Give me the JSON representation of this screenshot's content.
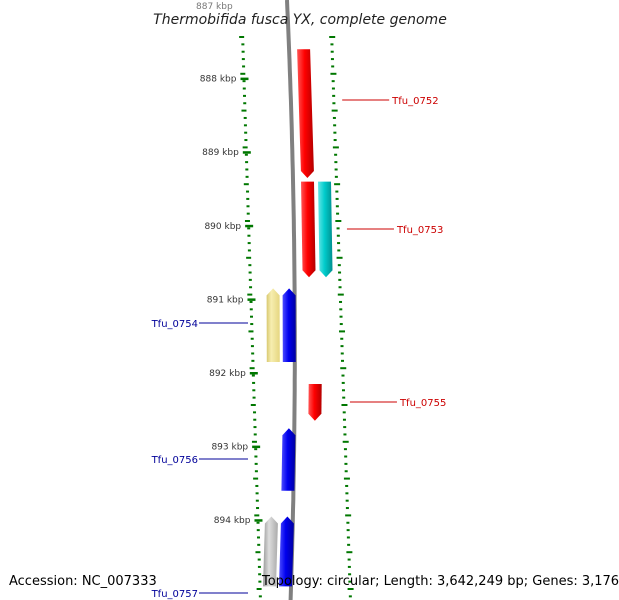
{
  "title": "Thermobifida fusca YX, complete genome",
  "top_tick_label": "887 kbp",
  "ticks": [
    "888 kbp",
    "889 kbp",
    "890 kbp",
    "891 kbp",
    "892 kbp",
    "893 kbp",
    "894 kbp"
  ],
  "genes": [
    {
      "label": "Tfu_0752",
      "strand": "plus",
      "start_kbp": 887.6,
      "end_kbp": 889.35,
      "color": "#ff0000"
    },
    {
      "label": "Tfu_0753",
      "strand": "plus",
      "start_kbp": 889.4,
      "end_kbp": 890.7,
      "color": "#ff0000"
    },
    {
      "label": "",
      "strand": "plus",
      "start_kbp": 889.4,
      "end_kbp": 890.7,
      "color": "#00cccc"
    },
    {
      "label": "Tfu_0754",
      "strand": "minus",
      "start_kbp": 890.85,
      "end_kbp": 891.85,
      "color": "#0000ee"
    },
    {
      "label": "",
      "strand": "minus",
      "start_kbp": 890.85,
      "end_kbp": 891.85,
      "color": "#f2e496"
    },
    {
      "label": "Tfu_0755",
      "strand": "plus",
      "start_kbp": 892.15,
      "end_kbp": 892.65,
      "color": "#ff0000"
    },
    {
      "label": "Tfu_0756",
      "strand": "minus",
      "start_kbp": 892.75,
      "end_kbp": 893.6,
      "color": "#0000ee"
    },
    {
      "label": "Tfu_0757",
      "strand": "minus",
      "start_kbp": 893.95,
      "end_kbp": 894.9,
      "color": "#0000ee"
    },
    {
      "label": "",
      "strand": "minus",
      "start_kbp": 893.95,
      "end_kbp": 894.9,
      "color": "#bbbbbb"
    }
  ],
  "footer": {
    "accession": "Accession: NC_007333",
    "summary": "Topology: circular; Length: 3,642,249 bp; Genes: 3,176"
  },
  "colors": {
    "plus_label": "#cc0000",
    "minus_label": "#000099",
    "tick_marks": "#007700",
    "backbone": "#808080"
  }
}
